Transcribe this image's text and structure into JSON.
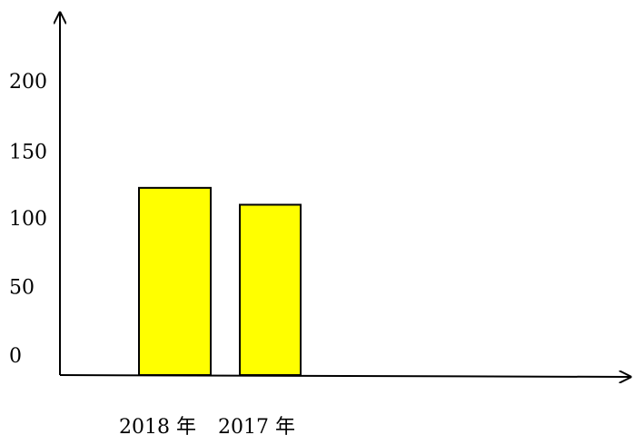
{
  "chart_data": {
    "type": "bar",
    "categories": [
      "2018 年",
      "2017 年"
    ],
    "values": [
      133,
      121
    ],
    "y_ticks": [
      "0",
      "50",
      "100",
      "150",
      "200"
    ],
    "y_tick_values": [
      0,
      50,
      100,
      150,
      200
    ],
    "ylim": [
      0,
      230
    ],
    "grid": false,
    "legend": "none",
    "bar_color": "#ffff00",
    "bar_stroke": "#000000"
  }
}
